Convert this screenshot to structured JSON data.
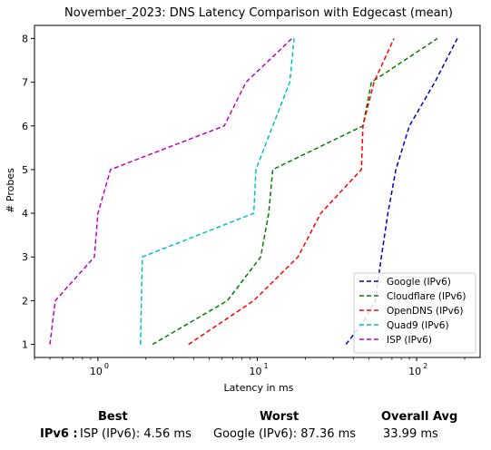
{
  "chart_data": {
    "type": "line",
    "title": "November_2023: DNS Latency Comparison with Edgecast (mean)",
    "xlabel": "Latency in ms",
    "ylabel": "# Probes",
    "xscale": "log",
    "xlim": [
      0.4,
      250
    ],
    "ylim": [
      0.7,
      8.3
    ],
    "xticks": [
      {
        "value": 1,
        "label": "10"
      },
      {
        "value": 10,
        "label": "10"
      },
      {
        "value": 100,
        "label": "10"
      }
    ],
    "xtick_exponents": [
      "0",
      "1",
      "2"
    ],
    "yticks": [
      1,
      2,
      3,
      4,
      5,
      6,
      7,
      8
    ],
    "legend_position": "lower-right",
    "grid": false,
    "series": [
      {
        "name": "Google (IPv6)",
        "color": "#0000bf",
        "x": [
          36,
          46,
          55,
          60,
          66,
          74,
          90,
          130,
          180
        ],
        "y": [
          1,
          1.5,
          2,
          3,
          4,
          5,
          6,
          7,
          8
        ]
      },
      {
        "name": "Cloudflare (IPv6)",
        "color": "#008000",
        "x": [
          2.2,
          6.5,
          10.5,
          11.8,
          12.5,
          46,
          52,
          135
        ],
        "y": [
          1,
          2,
          3,
          4,
          5,
          6,
          7,
          8
        ]
      },
      {
        "name": "OpenDNS (IPv6)",
        "color": "#ff0000",
        "x": [
          3.7,
          9.5,
          18,
          25,
          45,
          46,
          54,
          72
        ],
        "y": [
          1,
          2,
          3,
          4,
          5,
          6,
          7,
          8
        ]
      },
      {
        "name": "Quad9 (IPv6)",
        "color": "#00bfbf",
        "x": [
          1.85,
          1.9,
          9.5,
          9.8,
          12.5,
          16,
          17
        ],
        "y": [
          1,
          3,
          4,
          5,
          6,
          7,
          8
        ]
      },
      {
        "name": "ISP (IPv6)",
        "color": "#bf00bf",
        "x": [
          0.5,
          0.54,
          0.95,
          1.0,
          1.2,
          6.2,
          8.5,
          16.5
        ],
        "y": [
          1,
          2,
          3,
          4,
          5,
          6,
          7,
          8
        ]
      }
    ]
  },
  "summary": {
    "best_header": "Best",
    "worst_header": "Worst",
    "avg_header": "Overall Avg",
    "row_label": "IPv6 :",
    "best_value": "ISP (IPv6): 4.56 ms",
    "worst_value": "Google (IPv6): 87.36 ms",
    "avg_value": "33.99 ms"
  }
}
